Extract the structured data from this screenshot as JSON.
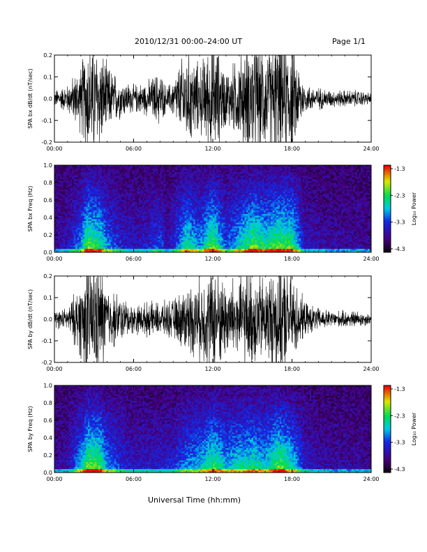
{
  "header": {
    "title": "2010/12/31  00:00–24:00 UT",
    "page": "Page 1/1"
  },
  "xaxis": {
    "title": "Universal Time (hh:mm)",
    "ticks": [
      "00:00",
      "06:00",
      "12:00",
      "18:00",
      "24:00"
    ]
  },
  "colorbar": {
    "label": "Log₁₀ Power",
    "ticks": [
      "-1.3",
      "-2.3",
      "-3.3",
      "-4.3"
    ],
    "range": [
      -4.3,
      -1.3
    ]
  },
  "chart_data": [
    {
      "type": "line",
      "ylabel": "SPA bx dB/dt (nT/sec)",
      "xlim": [
        0,
        24
      ],
      "ylim": [
        -0.2,
        0.2
      ],
      "yticks": [
        "0.2",
        "0.1",
        "0.0",
        "-0.1",
        "-0.2"
      ],
      "activity_envelope": {
        "hours": [
          0,
          1,
          2,
          2.5,
          3,
          3.5,
          4,
          5,
          6,
          7,
          8,
          8.5,
          9,
          10,
          11,
          12,
          13,
          14,
          15,
          16,
          17,
          18,
          19,
          20,
          21,
          22,
          23,
          24
        ],
        "amplitude": [
          0.03,
          0.05,
          0.12,
          0.22,
          0.2,
          0.18,
          0.12,
          0.07,
          0.05,
          0.06,
          0.1,
          0.04,
          0.07,
          0.18,
          0.12,
          0.22,
          0.1,
          0.15,
          0.22,
          0.18,
          0.22,
          0.2,
          0.05,
          0.04,
          0.03,
          0.03,
          0.03,
          0.02
        ]
      }
    },
    {
      "type": "heatmap",
      "ylabel": "SPA bx Freq (Hz)",
      "xlim": [
        0,
        24
      ],
      "ylim": [
        0,
        1.0
      ],
      "yticks": [
        "1.0",
        "0.8",
        "0.6",
        "0.4",
        "0.2",
        "0.0"
      ],
      "zlim": [
        -4.3,
        -1.3
      ]
    },
    {
      "type": "line",
      "ylabel": "SPA by dB/dt (nT/sec)",
      "xlim": [
        0,
        24
      ],
      "ylim": [
        -0.2,
        0.2
      ],
      "yticks": [
        "0.2",
        "0.1",
        "0.0",
        "-0.1",
        "-0.2"
      ],
      "activity_envelope": {
        "hours": [
          0,
          1,
          2,
          2.5,
          3,
          3.5,
          4,
          5,
          6,
          7,
          8,
          9,
          10,
          11,
          12,
          13,
          14,
          15,
          16,
          17,
          18,
          19,
          20,
          21,
          22,
          23,
          24
        ],
        "amplitude": [
          0.03,
          0.04,
          0.14,
          0.22,
          0.22,
          0.2,
          0.12,
          0.08,
          0.05,
          0.06,
          0.06,
          0.07,
          0.12,
          0.14,
          0.2,
          0.14,
          0.16,
          0.18,
          0.15,
          0.22,
          0.16,
          0.06,
          0.04,
          0.03,
          0.03,
          0.03,
          0.02
        ]
      }
    },
    {
      "type": "heatmap",
      "ylabel": "SPA by Freq (Hz)",
      "xlim": [
        0,
        24
      ],
      "ylim": [
        0,
        1.0
      ],
      "yticks": [
        "1.0",
        "0.8",
        "0.6",
        "0.4",
        "0.2",
        "0.0"
      ],
      "zlim": [
        -4.3,
        -1.3
      ]
    }
  ]
}
